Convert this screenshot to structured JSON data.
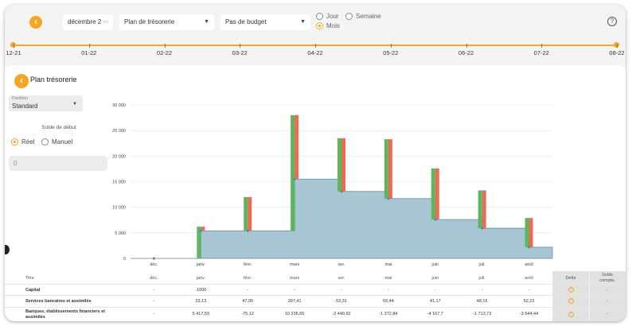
{
  "header": {
    "date_value": "décembre 2",
    "plan_select": "Plan de trésorerie",
    "budget_select": "Pas de budget",
    "period_options": [
      {
        "label": "Jour",
        "selected": false
      },
      {
        "label": "Semaine",
        "selected": false
      },
      {
        "label": "Mois",
        "selected": true
      }
    ],
    "help_label": "?"
  },
  "timeline": {
    "labels": [
      "12-21",
      "01-22",
      "02-22",
      "03-22",
      "04-22",
      "05-22",
      "06-22",
      "07-22",
      "08-22"
    ]
  },
  "panel": {
    "title": "Plan trésorerie",
    "partition_label": "Partition",
    "partition_value": "Standard",
    "solde_label": "Solde de début",
    "solde_modes": [
      {
        "label": "Réel",
        "selected": true
      },
      {
        "label": "Manuel",
        "selected": false
      }
    ],
    "solde_value": "0"
  },
  "chart_data": {
    "type": "bar",
    "categories": [
      "déc.",
      "janv.",
      "févr.",
      "mars",
      "avr.",
      "mai",
      "juin",
      "juil.",
      "août"
    ],
    "ylim": [
      0,
      30000
    ],
    "yticks": [
      "0",
      "5 000",
      "10 000",
      "15 000",
      "20 000",
      "25 000",
      "30 000"
    ],
    "ytick_values": [
      0,
      5000,
      10000,
      15000,
      20000,
      25000,
      30000
    ],
    "balance": [
      0,
      5400,
      5400,
      15500,
      13100,
      11700,
      7600,
      5900,
      2200
    ],
    "series": [
      {
        "color": "#5cb85c",
        "values": [
          0,
          6200,
          12000,
          28000,
          23500,
          23300,
          17600,
          13300,
          7900
        ]
      },
      {
        "color": "#ee6a55",
        "values": [
          0,
          6200,
          12000,
          28000,
          23500,
          23300,
          17600,
          13300,
          7900
        ]
      }
    ],
    "colors": {
      "balance_fill": "#a8c5d3",
      "balance_line": "#5c8aa3",
      "income": "#5cb85c",
      "expense": "#ee6a55"
    }
  },
  "table": {
    "header": {
      "title": "Titre",
      "months": [
        "déc.",
        "janv.",
        "févr.",
        "mars",
        "avr.",
        "mai",
        "juin",
        "juil.",
        "août"
      ],
      "delta": "Delta",
      "solde": "Solde compta."
    },
    "rows": [
      {
        "title": "Capital",
        "values": [
          "-",
          "-1000",
          "-",
          "-",
          "-",
          "-",
          "-",
          "-",
          "-"
        ],
        "solde": "-"
      },
      {
        "title": "Services bancaires et assimilés",
        "values": [
          "-",
          "23,13",
          "47,95",
          "397,41",
          "53,31",
          "59,44",
          "41,17",
          "48,16",
          "52,22"
        ],
        "solde": "-"
      },
      {
        "title": "Banques, établissements financiers et assimilés",
        "values": [
          "-",
          "5 417,59",
          "-75,12",
          "10 235,65",
          "-2 449,92",
          "-1 372,84",
          "-4 167,7",
          "-1 713,73",
          "-3 644,44"
        ],
        "solde": "-"
      }
    ]
  }
}
